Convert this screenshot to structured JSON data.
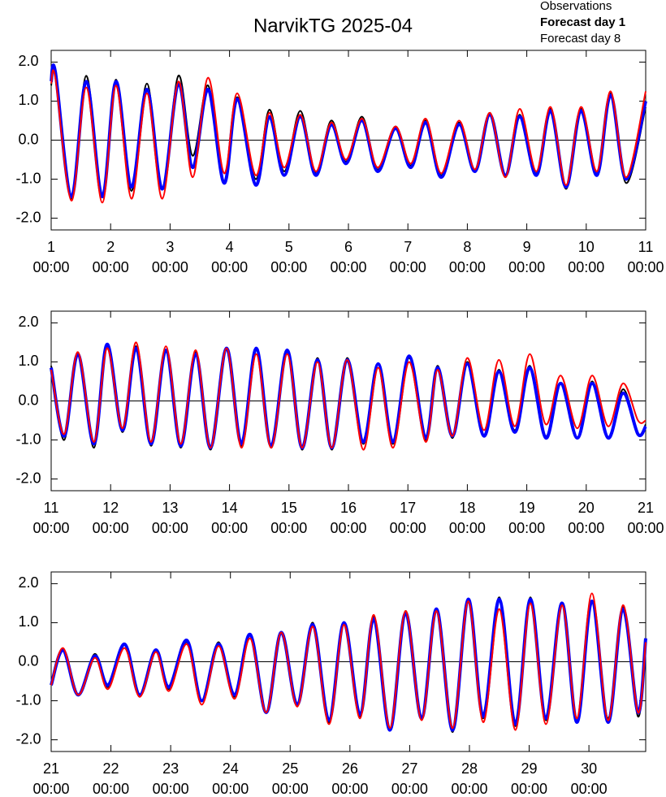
{
  "chart_data": [
    {
      "type": "line",
      "title": "NarvikTG 2025-04",
      "x": [
        1.0,
        1.07,
        1.34,
        1.59,
        1.86,
        2.09,
        2.35,
        2.61,
        2.87,
        3.14,
        3.38,
        3.64,
        3.91,
        4.13,
        4.44,
        4.67,
        4.92,
        5.19,
        5.45,
        5.71,
        5.96,
        6.23,
        6.49,
        6.79,
        7.05,
        7.3,
        7.56,
        7.86,
        8.13,
        8.38,
        8.64,
        8.88,
        9.16,
        9.4,
        9.66,
        9.91,
        10.18,
        10.41,
        10.67,
        11.0
      ],
      "series": [
        {
          "name": "Observations",
          "color": "#000000",
          "values": [
            1.4,
            1.7,
            -1.5,
            1.65,
            -1.4,
            1.55,
            -1.3,
            1.45,
            -1.25,
            1.65,
            -0.4,
            1.4,
            -1.05,
            1.1,
            -1.0,
            0.78,
            -0.8,
            0.75,
            -0.85,
            0.5,
            -0.55,
            0.6,
            -0.75,
            0.35,
            -0.65,
            0.5,
            -0.9,
            0.45,
            -0.75,
            0.7,
            -0.95,
            0.65,
            -0.85,
            0.8,
            -1.25,
            0.8,
            -0.85,
            1.2,
            -1.1,
            0.85
          ]
        },
        {
          "name": "Forecast day 1",
          "color": "#0000ff",
          "values": [
            1.5,
            1.75,
            -1.45,
            1.5,
            -1.45,
            1.5,
            -1.2,
            1.3,
            -1.25,
            1.45,
            -0.7,
            1.3,
            -1.1,
            1.05,
            -1.15,
            0.6,
            -0.9,
            0.6,
            -0.9,
            0.4,
            -0.6,
            0.5,
            -0.8,
            0.3,
            -0.7,
            0.45,
            -0.95,
            0.4,
            -0.8,
            0.65,
            -0.9,
            0.6,
            -0.9,
            0.75,
            -1.2,
            0.75,
            -0.9,
            1.15,
            -1.0,
            1.0
          ]
        },
        {
          "name": "Forecast day 8",
          "color": "#ff0000",
          "values": [
            1.45,
            1.6,
            -1.55,
            1.35,
            -1.6,
            1.4,
            -1.5,
            1.2,
            -1.5,
            1.5,
            -0.95,
            1.6,
            -0.85,
            1.2,
            -0.9,
            0.7,
            -0.7,
            0.65,
            -0.8,
            0.45,
            -0.5,
            0.55,
            -0.7,
            0.35,
            -0.6,
            0.55,
            -0.85,
            0.5,
            -0.75,
            0.7,
            -0.95,
            0.8,
            -0.8,
            0.85,
            -1.15,
            0.85,
            -0.8,
            1.25,
            -0.95,
            1.25
          ]
        }
      ],
      "xlim": [
        1,
        11
      ],
      "xticks": [
        {
          "value": 1,
          "label": [
            "1",
            "00:00"
          ]
        },
        {
          "value": 2,
          "label": [
            "2",
            "00:00"
          ]
        },
        {
          "value": 3,
          "label": [
            "3",
            "00:00"
          ]
        },
        {
          "value": 4,
          "label": [
            "4",
            "00:00"
          ]
        },
        {
          "value": 5,
          "label": [
            "5",
            "00:00"
          ]
        },
        {
          "value": 6,
          "label": [
            "6",
            "00:00"
          ]
        },
        {
          "value": 7,
          "label": [
            "7",
            "00:00"
          ]
        },
        {
          "value": 8,
          "label": [
            "8",
            "00:00"
          ]
        },
        {
          "value": 9,
          "label": [
            "9",
            "00:00"
          ]
        },
        {
          "value": 10,
          "label": [
            "10",
            "00:00"
          ]
        },
        {
          "value": 11,
          "label": [
            "11",
            "00:00"
          ]
        }
      ],
      "ylim": [
        -2.3,
        2.3
      ],
      "yticks": [
        {
          "value": 2,
          "label": "2.0"
        },
        {
          "value": 1,
          "label": "1.0"
        },
        {
          "value": 0,
          "label": "0.0"
        },
        {
          "value": -1,
          "label": "-1.0"
        },
        {
          "value": -2,
          "label": "-2.0"
        }
      ],
      "zero_line": true
    },
    {
      "type": "line",
      "x": [
        11.0,
        11.22,
        11.45,
        11.72,
        11.94,
        12.2,
        12.43,
        12.68,
        12.93,
        13.18,
        13.43,
        13.68,
        13.95,
        14.2,
        14.45,
        14.7,
        14.97,
        15.22,
        15.48,
        15.72,
        15.98,
        16.25,
        16.5,
        16.75,
        17.02,
        17.3,
        17.5,
        17.75,
        18.0,
        18.28,
        18.53,
        18.8,
        19.05,
        19.32,
        19.57,
        19.85,
        20.1,
        20.37,
        20.62,
        20.87,
        21.0
      ],
      "series": [
        {
          "color": "#000000",
          "values": [
            0.9,
            -1.0,
            1.25,
            -1.2,
            1.45,
            -0.8,
            1.4,
            -1.15,
            1.3,
            -1.2,
            1.25,
            -1.25,
            1.35,
            -1.15,
            1.3,
            -1.2,
            1.25,
            -1.25,
            1.1,
            -1.25,
            1.1,
            -1.1,
            0.95,
            -1.1,
            1.1,
            -1.0,
            0.9,
            -0.95,
            1.0,
            -0.9,
            0.8,
            -0.75,
            0.9,
            -0.9,
            0.45,
            -0.95,
            0.5,
            -0.95,
            0.3,
            -0.85,
            -0.6
          ]
        },
        {
          "color": "#0000ff",
          "values": [
            0.85,
            -0.9,
            1.2,
            -1.1,
            1.45,
            -0.75,
            1.35,
            -1.1,
            1.3,
            -1.15,
            1.2,
            -1.2,
            1.35,
            -1.1,
            1.35,
            -1.15,
            1.3,
            -1.2,
            1.05,
            -1.2,
            1.05,
            -1.05,
            0.95,
            -1.05,
            1.15,
            -0.95,
            0.85,
            -0.9,
            0.95,
            -0.9,
            0.75,
            -0.8,
            0.85,
            -0.95,
            0.45,
            -0.95,
            0.45,
            -0.95,
            0.2,
            -0.85,
            -0.65
          ]
        },
        {
          "color": "#ff0000",
          "values": [
            0.8,
            -0.85,
            1.25,
            -1.05,
            1.35,
            -0.7,
            1.5,
            -1.05,
            1.4,
            -1.1,
            1.3,
            -1.2,
            1.35,
            -1.2,
            1.2,
            -1.2,
            1.2,
            -1.2,
            1.0,
            -1.2,
            1.05,
            -1.25,
            0.85,
            -1.2,
            1.0,
            -1.05,
            0.8,
            -0.9,
            1.1,
            -0.75,
            1.05,
            -0.65,
            1.2,
            -0.6,
            0.65,
            -0.7,
            0.65,
            -0.65,
            0.45,
            -0.5,
            -0.5
          ]
        }
      ],
      "xlim": [
        11,
        21
      ],
      "xticks": [
        {
          "value": 11,
          "label": [
            "11",
            "00:00"
          ]
        },
        {
          "value": 12,
          "label": [
            "12",
            "00:00"
          ]
        },
        {
          "value": 13,
          "label": [
            "13",
            "00:00"
          ]
        },
        {
          "value": 14,
          "label": [
            "14",
            "00:00"
          ]
        },
        {
          "value": 15,
          "label": [
            "15",
            "00:00"
          ]
        },
        {
          "value": 16,
          "label": [
            "16",
            "00:00"
          ]
        },
        {
          "value": 17,
          "label": [
            "17",
            "00:00"
          ]
        },
        {
          "value": 18,
          "label": [
            "18",
            "00:00"
          ]
        },
        {
          "value": 19,
          "label": [
            "19",
            "00:00"
          ]
        },
        {
          "value": 20,
          "label": [
            "20",
            "00:00"
          ]
        },
        {
          "value": 21,
          "label": [
            "21",
            "00:00"
          ]
        }
      ],
      "ylim": [
        -2.3,
        2.3
      ],
      "yticks": [
        {
          "value": 2,
          "label": "2.0"
        },
        {
          "value": 1,
          "label": "1.0"
        },
        {
          "value": 0,
          "label": "0.0"
        },
        {
          "value": -1,
          "label": "-1.0"
        },
        {
          "value": -2,
          "label": "-2.0"
        }
      ],
      "zero_line": true
    },
    {
      "type": "line",
      "x": [
        21.0,
        21.2,
        21.45,
        21.73,
        21.95,
        22.23,
        22.48,
        22.75,
        22.97,
        23.27,
        23.52,
        23.8,
        24.07,
        24.33,
        24.6,
        24.85,
        25.12,
        25.38,
        25.65,
        25.9,
        26.17,
        26.4,
        26.67,
        26.93,
        27.2,
        27.45,
        27.72,
        27.98,
        28.23,
        28.5,
        28.77,
        29.02,
        29.28,
        29.55,
        29.8,
        30.05,
        30.32,
        30.57,
        30.82,
        30.95
      ],
      "series": [
        {
          "color": "#000000",
          "values": [
            -0.6,
            0.3,
            -0.85,
            0.2,
            -0.65,
            0.45,
            -0.85,
            0.3,
            -0.7,
            0.5,
            -1.0,
            0.5,
            -0.9,
            0.7,
            -1.3,
            0.75,
            -1.1,
            1.0,
            -1.55,
            1.0,
            -1.4,
            1.15,
            -1.75,
            1.3,
            -1.45,
            1.35,
            -1.8,
            1.6,
            -1.45,
            1.65,
            -1.65,
            1.65,
            -1.5,
            1.45,
            -1.55,
            1.55,
            -1.45,
            1.4,
            -1.4,
            0.55
          ]
        },
        {
          "color": "#0000ff",
          "values": [
            -0.6,
            0.3,
            -0.85,
            0.15,
            -0.6,
            0.45,
            -0.85,
            0.3,
            -0.65,
            0.55,
            -1.0,
            0.45,
            -0.85,
            0.7,
            -1.3,
            0.75,
            -1.1,
            0.95,
            -1.5,
            1.0,
            -1.35,
            1.1,
            -1.75,
            1.25,
            -1.45,
            1.35,
            -1.75,
            1.6,
            -1.4,
            1.6,
            -1.6,
            1.6,
            -1.45,
            1.5,
            -1.55,
            1.55,
            -1.55,
            1.35,
            -1.3,
            0.6
          ]
        },
        {
          "color": "#ff0000",
          "values": [
            -0.6,
            0.35,
            -0.85,
            0.1,
            -0.7,
            0.35,
            -0.9,
            0.25,
            -0.75,
            0.45,
            -1.1,
            0.4,
            -0.95,
            0.6,
            -1.3,
            0.75,
            -1.15,
            0.9,
            -1.6,
            0.95,
            -1.45,
            1.2,
            -1.7,
            1.3,
            -1.5,
            1.3,
            -1.7,
            1.55,
            -1.55,
            1.35,
            -1.75,
            1.5,
            -1.6,
            1.45,
            -1.45,
            1.75,
            -1.5,
            1.45,
            -1.3,
            0.5
          ]
        }
      ],
      "xlim": [
        21,
        30.95
      ],
      "xticks": [
        {
          "value": 21,
          "label": [
            "21",
            "00:00"
          ]
        },
        {
          "value": 22,
          "label": [
            "22",
            "00:00"
          ]
        },
        {
          "value": 23,
          "label": [
            "23",
            "00:00"
          ]
        },
        {
          "value": 24,
          "label": [
            "24",
            "00:00"
          ]
        },
        {
          "value": 25,
          "label": [
            "25",
            "00:00"
          ]
        },
        {
          "value": 26,
          "label": [
            "26",
            "00:00"
          ]
        },
        {
          "value": 27,
          "label": [
            "27",
            "00:00"
          ]
        },
        {
          "value": 28,
          "label": [
            "28",
            "00:00"
          ]
        },
        {
          "value": 29,
          "label": [
            "29",
            "00:00"
          ]
        },
        {
          "value": 30,
          "label": [
            "30",
            "00:00"
          ]
        }
      ],
      "ylim": [
        -2.3,
        2.3
      ],
      "yticks": [
        {
          "value": 2,
          "label": "2.0"
        },
        {
          "value": 1,
          "label": "1.0"
        },
        {
          "value": 0,
          "label": "0.0"
        },
        {
          "value": -1,
          "label": "-1.0"
        },
        {
          "value": -2,
          "label": "-2.0"
        }
      ],
      "zero_line": true
    }
  ]
}
